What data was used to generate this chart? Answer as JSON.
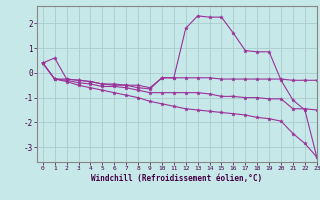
{
  "background_color": "#c6e8e8",
  "line_color": "#993399",
  "grid_color": "#aacccc",
  "xlabel": "Windchill (Refroidissement éolien,°C)",
  "ylim": [
    -3.6,
    2.7
  ],
  "xlim": [
    -0.5,
    23
  ],
  "yticks": [
    -3,
    -2,
    -1,
    0,
    1,
    2
  ],
  "xticks": [
    0,
    1,
    2,
    3,
    4,
    5,
    6,
    7,
    8,
    9,
    10,
    11,
    12,
    13,
    14,
    15,
    16,
    17,
    18,
    19,
    20,
    21,
    22,
    23
  ],
  "series": [
    [
      0.4,
      0.6,
      -0.25,
      -0.3,
      -0.35,
      -0.45,
      -0.5,
      -0.5,
      -0.5,
      -0.6,
      -0.2,
      -0.2,
      1.8,
      2.3,
      2.25,
      2.25,
      1.6,
      0.9,
      0.85,
      0.85,
      -0.3,
      -1.1,
      -1.5,
      -3.4
    ],
    [
      0.4,
      -0.25,
      -0.25,
      -0.3,
      -0.35,
      -0.45,
      -0.45,
      -0.5,
      -0.6,
      -0.65,
      -0.2,
      -0.2,
      -0.2,
      -0.2,
      -0.2,
      -0.25,
      -0.25,
      -0.25,
      -0.25,
      -0.25,
      -0.25,
      -0.3,
      -0.3,
      -0.3
    ],
    [
      0.4,
      -0.25,
      -0.3,
      -0.4,
      -0.45,
      -0.55,
      -0.55,
      -0.6,
      -0.7,
      -0.8,
      -0.8,
      -0.8,
      -0.8,
      -0.8,
      -0.85,
      -0.95,
      -0.95,
      -1.0,
      -1.0,
      -1.05,
      -1.05,
      -1.45,
      -1.45,
      -1.5
    ],
    [
      0.4,
      -0.25,
      -0.35,
      -0.5,
      -0.6,
      -0.7,
      -0.8,
      -0.9,
      -1.0,
      -1.15,
      -1.25,
      -1.35,
      -1.45,
      -1.5,
      -1.55,
      -1.6,
      -1.65,
      -1.7,
      -1.8,
      -1.85,
      -1.95,
      -2.45,
      -2.85,
      -3.4
    ]
  ]
}
